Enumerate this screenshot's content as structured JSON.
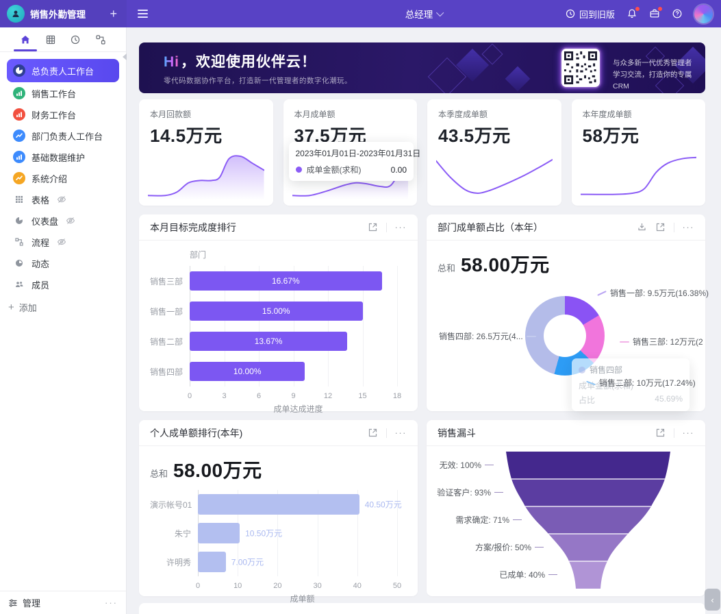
{
  "topbar": {
    "app_title": "销售外勤管理",
    "add_label": "+",
    "role_label": "总经理",
    "back_label": "回到旧版"
  },
  "sidebar": {
    "items": [
      {
        "label": "总负责人工作台",
        "icon": "pie-chart",
        "color": "#2f3f94",
        "selected": true
      },
      {
        "label": "销售工作台",
        "icon": "bar-chart",
        "color": "#2fb37a"
      },
      {
        "label": "财务工作台",
        "icon": "bar-chart",
        "color": "#f2503f"
      },
      {
        "label": "部门负责人工作台",
        "icon": "line-chart",
        "color": "#3d8bfd"
      },
      {
        "label": "基础数据维护",
        "icon": "bar-chart",
        "color": "#3d8bfd"
      },
      {
        "label": "系统介绍",
        "icon": "line-chart",
        "color": "#f5a623"
      },
      {
        "label": "表格",
        "icon": "table",
        "muted": true,
        "eye": true
      },
      {
        "label": "仪表盘",
        "icon": "pie",
        "muted": true,
        "eye": true
      },
      {
        "label": "流程",
        "icon": "flow",
        "muted": true,
        "eye": true
      },
      {
        "label": "动态",
        "icon": "clock",
        "muted": true
      },
      {
        "label": "成员",
        "icon": "people",
        "muted": true
      }
    ],
    "add_label": "添加",
    "manage_label": "管理"
  },
  "banner": {
    "greeting": "Hi",
    "title": "，欢迎使用伙伴云！",
    "subtitle": "零代码数据协作平台，打造新一代管理者的数字化潮玩。",
    "qr_line1": "与众多新一代优秀管理者",
    "qr_line2": "学习交流，打造你的专属CRM"
  },
  "stat_cards": [
    {
      "label": "本月回款额",
      "value": "14.5万元",
      "fill": true,
      "spark": [
        [
          0,
          2
        ],
        [
          15,
          2
        ],
        [
          25,
          5
        ],
        [
          35,
          13
        ],
        [
          45,
          15
        ],
        [
          55,
          15
        ],
        [
          62,
          18
        ],
        [
          70,
          34
        ],
        [
          80,
          36
        ],
        [
          90,
          30
        ],
        [
          100,
          24
        ]
      ]
    },
    {
      "label": "本月成单额",
      "value": "37.5万元",
      "fill": true,
      "spark": [
        [
          0,
          2
        ],
        [
          15,
          2
        ],
        [
          30,
          6
        ],
        [
          45,
          11
        ],
        [
          55,
          13
        ],
        [
          65,
          12
        ],
        [
          75,
          10
        ],
        [
          85,
          11
        ],
        [
          95,
          28
        ],
        [
          100,
          38
        ]
      ],
      "tooltip": {
        "date_range": "2023年01月01日-2023年01月31日",
        "series": "成单金额(求和)",
        "value": "0.00"
      }
    },
    {
      "label": "本季度成单额",
      "value": "43.5万元",
      "fill": false,
      "spark": [
        [
          0,
          32
        ],
        [
          12,
          18
        ],
        [
          25,
          7
        ],
        [
          35,
          4
        ],
        [
          45,
          6
        ],
        [
          60,
          12
        ],
        [
          75,
          19
        ],
        [
          88,
          26
        ],
        [
          100,
          33
        ]
      ]
    },
    {
      "label": "本年度成单额",
      "value": "58万元",
      "fill": false,
      "spark": [
        [
          0,
          3
        ],
        [
          30,
          3
        ],
        [
          45,
          4
        ],
        [
          55,
          8
        ],
        [
          65,
          22
        ],
        [
          75,
          30
        ],
        [
          88,
          34
        ],
        [
          100,
          35
        ]
      ]
    }
  ],
  "chart_data": [
    {
      "type": "bar",
      "orientation": "horizontal",
      "title": "本月目标完成度排行",
      "ylabel": "部门",
      "xlabel": "成单达成进度",
      "xlim": [
        0,
        18
      ],
      "xticks": [
        0,
        3,
        6,
        9,
        12,
        15,
        18
      ],
      "categories": [
        "销售三部",
        "销售一部",
        "销售二部",
        "销售四部"
      ],
      "values": [
        16.67,
        15.0,
        13.67,
        10.0
      ],
      "value_labels": [
        "16.67%",
        "15.00%",
        "13.67%",
        "10.00%"
      ],
      "bar_color": "#7c57f2"
    },
    {
      "type": "pie",
      "title": "部门成单额占比（本年）",
      "total_label": "总和",
      "total_value": "58.00万元",
      "slices": [
        {
          "name": "销售一部",
          "label": "销售一部: 9.5万元(16.38%)",
          "value": 9.5,
          "pct": 16.38,
          "color": "#8a53f4"
        },
        {
          "name": "销售三部",
          "label": "销售三部: 12万元(20....",
          "value": 12,
          "pct": 20.69,
          "color": "#f175dc"
        },
        {
          "name": "销售二部",
          "label": "销售二部: 10万元(17.24%)",
          "value": 10,
          "pct": 17.24,
          "color": "#2d9cf5"
        },
        {
          "name": "销售四部",
          "label": "销售四部: 26.5万元(4...",
          "value": 26.5,
          "pct": 45.69,
          "color": "#b4bce9"
        }
      ],
      "tooltip": {
        "title": "销售四部",
        "row1_label": "成单金额(求和)",
        "row1_value": "",
        "row2_label": "占比",
        "row2_value": "45.69%"
      }
    },
    {
      "type": "bar",
      "orientation": "horizontal",
      "title": "个人成单额排行(本年)",
      "total_label": "总和",
      "total_value": "58.00万元",
      "xlabel": "成单额",
      "xlim": [
        0,
        50
      ],
      "xticks": [
        0,
        10,
        20,
        30,
        40,
        50
      ],
      "categories": [
        "演示帐号01",
        "朱宁",
        "许明秀"
      ],
      "values": [
        40.5,
        10.5,
        7.0
      ],
      "value_labels": [
        "40.50万元",
        "10.50万元",
        "7.00万元"
      ],
      "bar_color": "#b3bff0"
    },
    {
      "type": "funnel",
      "title": "销售漏斗",
      "stages": [
        {
          "label": "无效: 100%",
          "pct": 100,
          "color": "#44288d"
        },
        {
          "label": "验证客户: 93%",
          "pct": 93,
          "color": "#5b3da1"
        },
        {
          "label": "需求确定: 71%",
          "pct": 71,
          "color": "#7a5cb5"
        },
        {
          "label": "方案/报价: 50%",
          "pct": 50,
          "color": "#9577c6"
        },
        {
          "label": "已成单: 40%",
          "pct": 40,
          "color": "#b094d6"
        }
      ]
    }
  ]
}
